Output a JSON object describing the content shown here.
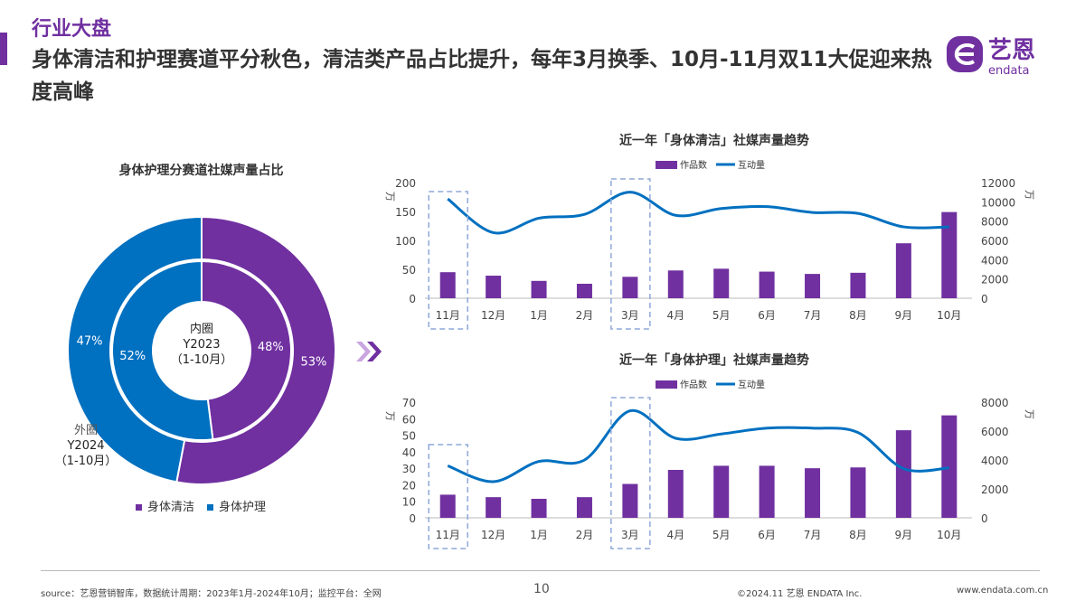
{
  "header": {
    "section": "行业大盘",
    "headline": "身体清洁和护理赛道平分秋色，清洁类产品占比提升，每年3月换季、10月-11月双11大促迎来热度高峰",
    "logo_text": "艺恩",
    "logo_sub": "endata"
  },
  "colors": {
    "purple": "#7030a0",
    "blue": "#0070c0",
    "dashed_box": "#8fa9d9"
  },
  "arrow_icon": "double-chevron-right-icon",
  "chart_data": [
    {
      "type": "pie",
      "title": "身体护理分赛道社媒声量占比",
      "inner_label": [
        "内圈",
        "Y2023",
        "（1-10月）"
      ],
      "outer_label": [
        "外圈",
        "Y2024",
        "（1-10月）"
      ],
      "legend": [
        "身体清洁",
        "身体护理"
      ],
      "inner": {
        "values": [
          48,
          52
        ],
        "labels": [
          "48%",
          "52%"
        ]
      },
      "outer": {
        "values": [
          53,
          47
        ],
        "labels": [
          "53%",
          "47%"
        ]
      }
    },
    {
      "type": "bar+line",
      "title": "近一年「身体清洁」社媒声量趋势",
      "categories": [
        "11月",
        "12月",
        "1月",
        "2月",
        "3月",
        "4月",
        "5月",
        "6月",
        "7月",
        "8月",
        "9月",
        "10月"
      ],
      "left_unit": "万",
      "right_unit": "万",
      "ylim_left": [
        0,
        200
      ],
      "yticks_left": [
        0,
        50,
        100,
        150,
        200
      ],
      "ylim_right": [
        0,
        12000
      ],
      "yticks_right": [
        0,
        2000,
        4000,
        6000,
        8000,
        10000,
        12000
      ],
      "series": [
        {
          "name": "作品数",
          "type": "bar",
          "axis": "left",
          "values": [
            45,
            39,
            30,
            25,
            37,
            48,
            51,
            46,
            42,
            44,
            95,
            149
          ]
        },
        {
          "name": "互动量",
          "type": "line",
          "axis": "right",
          "values": [
            10300,
            6800,
            8300,
            8700,
            11000,
            8600,
            9300,
            9500,
            8900,
            8800,
            7400,
            7400
          ]
        }
      ],
      "highlighted": [
        "11月",
        "3月"
      ]
    },
    {
      "type": "bar+line",
      "title": "近一年「身体护理」社媒声量趋势",
      "categories": [
        "11月",
        "12月",
        "1月",
        "2月",
        "3月",
        "4月",
        "5月",
        "6月",
        "7月",
        "8月",
        "9月",
        "10月"
      ],
      "left_unit": "万",
      "right_unit": "万",
      "ylim_left": [
        0,
        70
      ],
      "yticks_left": [
        0,
        10,
        20,
        30,
        40,
        50,
        60,
        70
      ],
      "ylim_right": [
        0,
        8000
      ],
      "yticks_right": [
        0,
        2000,
        4000,
        6000,
        8000
      ],
      "series": [
        {
          "name": "作品数",
          "type": "bar",
          "axis": "left",
          "values": [
            14,
            12.5,
            11.5,
            12.5,
            20.5,
            29,
            31.5,
            31.5,
            30,
            30.5,
            53,
            62
          ]
        },
        {
          "name": "互动量",
          "type": "line",
          "axis": "right",
          "values": [
            3600,
            2500,
            3900,
            4000,
            7400,
            5500,
            5800,
            6200,
            6200,
            5900,
            3400,
            3450
          ]
        }
      ],
      "highlighted": [
        "11月",
        "3月"
      ]
    }
  ],
  "footer": {
    "source": "source：艺恩营销智库，数据统计周期：2023年1月-2024年10月；监控平台：全网",
    "page": "10",
    "copyright": "©2024.11 艺恩 ENDATA Inc.",
    "url": "www.endata.com.cn"
  }
}
